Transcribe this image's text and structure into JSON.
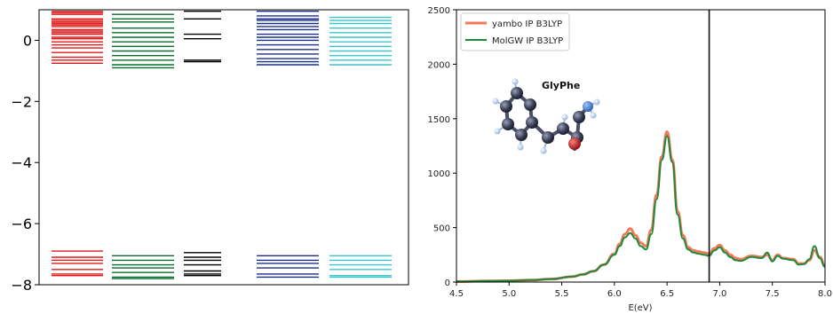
{
  "chart_data": [
    {
      "type": "energy-level-diagram",
      "title": "",
      "xlabel": "",
      "ylabel": "",
      "ylim": [
        -8,
        1
      ],
      "yticks": [
        0,
        -2,
        -4,
        -6,
        -8
      ],
      "ytick_labels": [
        "0",
        "−2",
        "−4",
        "−6",
        "−8"
      ],
      "columns": [
        {
          "color": "#e01818",
          "levels": [
            0.95,
            0.9,
            0.85,
            0.7,
            0.65,
            0.6,
            0.55,
            0.5,
            0.45,
            0.35,
            0.3,
            0.25,
            0.2,
            0.1,
            0.05,
            -0.05,
            -0.15,
            -0.25,
            -0.4,
            -0.55,
            -0.65,
            -0.75,
            -6.9,
            -7.1,
            -7.2,
            -7.3,
            -7.5,
            -7.65,
            -7.7
          ]
        },
        {
          "color": "#0a6e2e",
          "levels": [
            0.85,
            0.7,
            0.6,
            0.4,
            0.25,
            0.1,
            -0.05,
            -0.2,
            -0.35,
            -0.5,
            -0.65,
            -0.8,
            -0.9,
            -7.05,
            -7.2,
            -7.35,
            -7.45,
            -7.6,
            -7.75,
            -7.8
          ]
        },
        {
          "color": "#000000",
          "levels": [
            0.95,
            0.7,
            0.2,
            0.05,
            -0.65,
            -0.7,
            -6.95,
            -7.1,
            -7.2,
            -7.35,
            -7.55,
            -7.65,
            -7.7
          ]
        },
        {
          "color": "#1a2e8a",
          "levels": [
            0.95,
            0.8,
            0.7,
            0.65,
            0.55,
            0.45,
            0.35,
            0.2,
            0.1,
            0.0,
            -0.15,
            -0.3,
            -0.45,
            -0.6,
            -0.7,
            -0.8,
            -7.05,
            -7.2,
            -7.3,
            -7.45,
            -7.65,
            -7.75
          ]
        },
        {
          "color": "#3cc4cc",
          "levels": [
            0.75,
            0.65,
            0.55,
            0.4,
            0.25,
            0.1,
            -0.05,
            -0.2,
            -0.35,
            -0.5,
            -0.65,
            -0.8,
            -7.05,
            -7.2,
            -7.35,
            -7.5,
            -7.7,
            -7.75
          ]
        }
      ]
    },
    {
      "type": "line",
      "title": "",
      "xlabel": "E(eV)",
      "ylabel": "",
      "xlim": [
        4.5,
        8.0
      ],
      "ylim": [
        0,
        2500
      ],
      "xticks": [
        4.5,
        5.0,
        5.5,
        6.0,
        6.5,
        7.0,
        7.5,
        8.0
      ],
      "xtick_labels": [
        "4.5",
        "5.0",
        "5.5",
        "6.0",
        "6.5",
        "7.0",
        "7.5",
        "8.0"
      ],
      "yticks": [
        0,
        500,
        1000,
        1500,
        2000,
        2500
      ],
      "ytick_labels": [
        "0",
        "500",
        "1000",
        "1500",
        "2000",
        "2500"
      ],
      "grid": false,
      "legend_position": "top-left",
      "vline_x": 6.9,
      "inset_label": "GlyPhe",
      "series": [
        {
          "name": "yambo IP B3LYP",
          "color": "#f07a5a",
          "width": 3,
          "x": [
            4.5,
            4.8,
            5.0,
            5.2,
            5.4,
            5.6,
            5.7,
            5.8,
            5.9,
            6.0,
            6.05,
            6.1,
            6.15,
            6.2,
            6.25,
            6.3,
            6.35,
            6.4,
            6.45,
            6.5,
            6.55,
            6.6,
            6.65,
            6.7,
            6.75,
            6.8,
            6.85,
            6.9,
            6.95,
            7.0,
            7.05,
            7.1,
            7.15,
            7.2,
            7.3,
            7.4,
            7.45,
            7.5,
            7.55,
            7.6,
            7.7,
            7.75,
            7.8,
            7.85,
            7.9,
            7.95,
            8.0
          ],
          "y": [
            5,
            10,
            12,
            18,
            28,
            50,
            70,
            100,
            160,
            260,
            350,
            440,
            490,
            430,
            360,
            330,
            480,
            800,
            1150,
            1380,
            1120,
            650,
            430,
            320,
            290,
            280,
            270,
            260,
            310,
            340,
            290,
            250,
            220,
            210,
            240,
            230,
            250,
            200,
            250,
            220,
            210,
            170,
            170,
            200,
            290,
            230,
            150
          ]
        },
        {
          "name": "MolGW IP B3LYP",
          "color": "#1e8a3a",
          "width": 2,
          "x": [
            4.5,
            4.8,
            5.0,
            5.2,
            5.4,
            5.6,
            5.7,
            5.8,
            5.9,
            6.0,
            6.05,
            6.1,
            6.15,
            6.2,
            6.25,
            6.3,
            6.35,
            6.4,
            6.45,
            6.5,
            6.55,
            6.6,
            6.65,
            6.7,
            6.75,
            6.8,
            6.85,
            6.9,
            6.95,
            7.0,
            7.05,
            7.1,
            7.15,
            7.2,
            7.3,
            7.4,
            7.45,
            7.5,
            7.55,
            7.6,
            7.7,
            7.75,
            7.8,
            7.85,
            7.9,
            7.95,
            8.0
          ],
          "y": [
            5,
            10,
            12,
            18,
            28,
            50,
            70,
            100,
            160,
            250,
            330,
            410,
            450,
            400,
            330,
            300,
            440,
            760,
            1120,
            1340,
            1100,
            620,
            400,
            300,
            270,
            260,
            250,
            240,
            290,
            320,
            270,
            230,
            200,
            195,
            230,
            220,
            270,
            190,
            240,
            215,
            200,
            160,
            165,
            210,
            330,
            220,
            140
          ]
        }
      ]
    }
  ]
}
